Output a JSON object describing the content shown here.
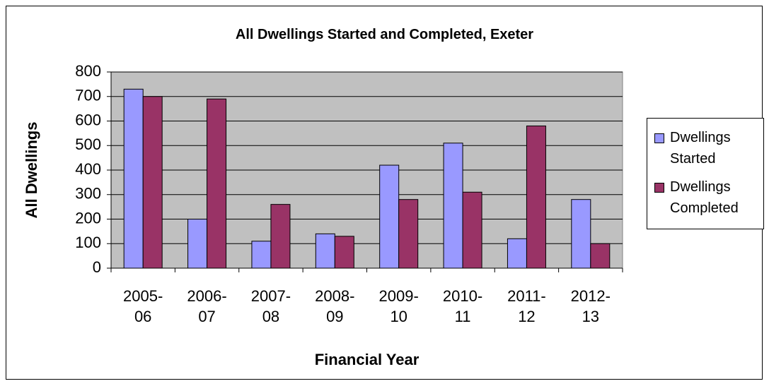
{
  "chart_data": {
    "type": "bar",
    "title": "All Dwellings Started and Completed, Exeter",
    "x_label": "Financial Year",
    "y_label": "All Dwellings",
    "categories": [
      "2005-06",
      "2006-07",
      "2007-08",
      "2008-09",
      "2009-10",
      "2010-11",
      "2011-12",
      "2012-13"
    ],
    "series": [
      {
        "name": "Dwellings Started",
        "color": "#9999ff",
        "values": [
          730,
          200,
          110,
          140,
          420,
          510,
          120,
          280
        ]
      },
      {
        "name": "Dwellings Completed",
        "color": "#993366",
        "values": [
          700,
          690,
          260,
          130,
          280,
          310,
          580,
          100
        ]
      }
    ],
    "ylim": [
      0,
      800
    ],
    "yticks": [
      0,
      100,
      200,
      300,
      400,
      500,
      600,
      700,
      800
    ],
    "grid": true,
    "legend": "right",
    "plot_background": "#c0c0c0"
  }
}
